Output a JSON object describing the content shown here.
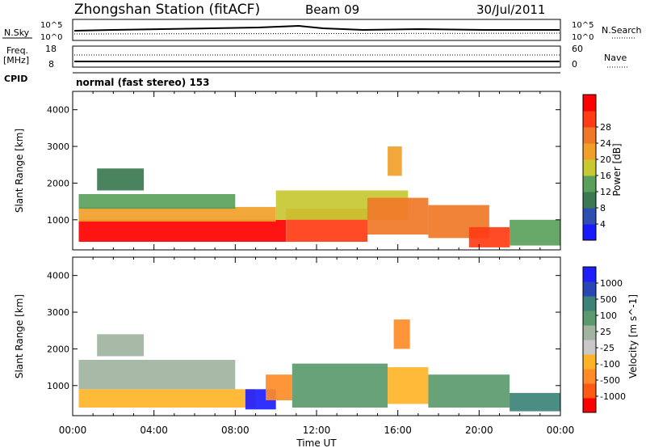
{
  "header": {
    "station": "Zhongshan Station (fitACF)",
    "beam": "Beam 09",
    "date": "30/Jul/2011"
  },
  "sky_panel": {
    "left_label": "N.Sky",
    "right_label": "N.Search",
    "left_ticks": [
      "10^5",
      "10^0"
    ],
    "right_ticks": [
      "10^5",
      "10^0"
    ]
  },
  "freq_panel": {
    "left_label_1": "Freq.",
    "left_label_2": "[MHz]",
    "right_label": "Nave",
    "left_ticks": [
      "18",
      "8"
    ],
    "right_ticks": [
      "60",
      "0"
    ]
  },
  "cpid": {
    "label": "CPID",
    "value": "normal (fast stereo) 153"
  },
  "x_axis": {
    "ticks": [
      "00:00",
      "04:00",
      "08:00",
      "12:00",
      "16:00",
      "20:00",
      "00:00"
    ],
    "label": "Time UT"
  },
  "colors": {
    "power_scale": [
      "#1a1aff",
      "#2e4fb0",
      "#3b7a50",
      "#5aa05a",
      "#c8c832",
      "#f0a028",
      "#f07828",
      "#ff3c14",
      "#ff0000"
    ],
    "velocity_scale": [
      "#ff0000",
      "#ff5a14",
      "#ff8c28",
      "#ffb428",
      "#c8c8c8",
      "#a0b4a0",
      "#5a9a6e",
      "#3c8278",
      "#2846b4",
      "#1e1eff"
    ]
  },
  "chart_data": [
    {
      "type": "heatmap",
      "ylabel": "Slant Range [km]",
      "xlabel": "Time UT",
      "ylim": [
        180,
        4500
      ],
      "y_ticks": [
        "1000",
        "2000",
        "3000",
        "4000"
      ],
      "colorbar": {
        "label": "Power [dB]",
        "ticks": [
          "4",
          "8",
          "12",
          "16",
          "20",
          "24",
          "28"
        ],
        "range": [
          0,
          30
        ]
      },
      "patches": [
        {
          "t0": 0.3,
          "t1": 10.5,
          "r0": 400,
          "r1": 1000,
          "v": 27
        },
        {
          "t0": 0.3,
          "t1": 10.0,
          "r0": 950,
          "r1": 1350,
          "v": 19
        },
        {
          "t0": 0.3,
          "t1": 8.0,
          "r0": 1300,
          "r1": 1700,
          "v": 11
        },
        {
          "t0": 1.2,
          "t1": 3.5,
          "r0": 1800,
          "r1": 2400,
          "v": 8
        },
        {
          "t0": 10.5,
          "t1": 14.5,
          "r0": 400,
          "r1": 1300,
          "v": 24
        },
        {
          "t0": 10.0,
          "t1": 16.5,
          "r0": 1000,
          "r1": 1800,
          "v": 14
        },
        {
          "t0": 14.5,
          "t1": 17.5,
          "r0": 600,
          "r1": 1600,
          "v": 20
        },
        {
          "t0": 15.5,
          "t1": 16.2,
          "r0": 2200,
          "r1": 3000,
          "v": 18
        },
        {
          "t0": 17.5,
          "t1": 20.5,
          "r0": 500,
          "r1": 1400,
          "v": 21
        },
        {
          "t0": 19.5,
          "t1": 21.5,
          "r0": 250,
          "r1": 800,
          "v": 25
        },
        {
          "t0": 21.5,
          "t1": 24.0,
          "r0": 300,
          "r1": 1000,
          "v": 10
        }
      ]
    },
    {
      "type": "heatmap",
      "ylabel": "Slant Range [km]",
      "xlabel": "Time UT",
      "ylim": [
        180,
        4500
      ],
      "y_ticks": [
        "1000",
        "2000",
        "3000",
        "4000"
      ],
      "colorbar": {
        "label": "Velocity [m s^-1]",
        "ticks": [
          "1000",
          "500",
          "100",
          "25",
          "-25",
          "-100",
          "-500",
          "-1000"
        ],
        "range": [
          -1000,
          1000
        ]
      },
      "patches": [
        {
          "t0": 0.3,
          "t1": 9.0,
          "r0": 400,
          "r1": 900,
          "v": -300
        },
        {
          "t0": 0.3,
          "t1": 8.0,
          "r0": 900,
          "r1": 1700,
          "v": 100
        },
        {
          "t0": 1.2,
          "t1": 3.5,
          "r0": 1800,
          "r1": 2400,
          "v": 10
        },
        {
          "t0": 8.5,
          "t1": 10.0,
          "r0": 350,
          "r1": 900,
          "v": 900
        },
        {
          "t0": 9.5,
          "t1": 10.8,
          "r0": 600,
          "r1": 1300,
          "v": -600
        },
        {
          "t0": 10.8,
          "t1": 15.5,
          "r0": 400,
          "r1": 1600,
          "v": 200
        },
        {
          "t0": 15.5,
          "t1": 17.5,
          "r0": 500,
          "r1": 1500,
          "v": -400
        },
        {
          "t0": 15.8,
          "t1": 16.6,
          "r0": 2000,
          "r1": 2800,
          "v": -500
        },
        {
          "t0": 17.5,
          "t1": 21.5,
          "r0": 400,
          "r1": 1300,
          "v": 300
        },
        {
          "t0": 21.5,
          "t1": 24.0,
          "r0": 300,
          "r1": 800,
          "v": 400
        }
      ]
    }
  ]
}
